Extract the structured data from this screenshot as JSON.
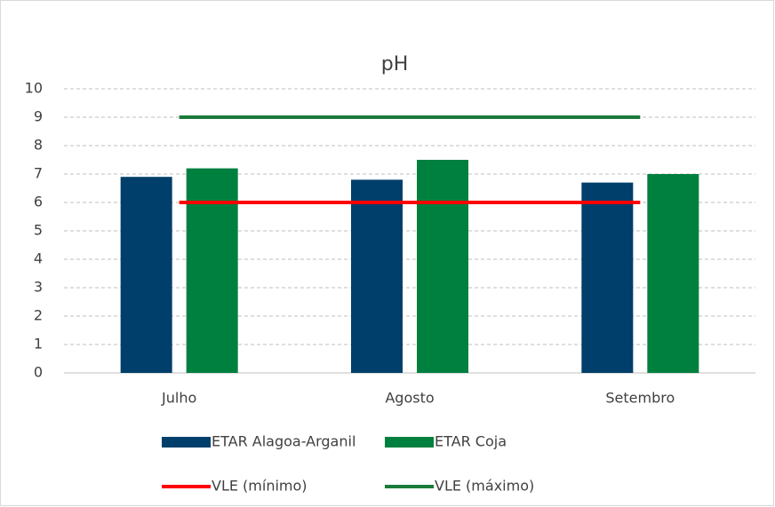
{
  "chart_data": {
    "type": "bar",
    "title": "pH",
    "categories": [
      "Julho",
      "Agosto",
      "Setembro"
    ],
    "series": [
      {
        "name": "ETAR Alagoa-Arganil",
        "type": "bar",
        "color": "#003f6b",
        "values": [
          6.9,
          6.8,
          6.7
        ]
      },
      {
        "name": "ETAR Coja",
        "type": "bar",
        "color": "#00803f",
        "values": [
          7.2,
          7.5,
          7.0
        ]
      },
      {
        "name": "VLE (mínimo)",
        "type": "line",
        "color": "#ff0000",
        "values": [
          6,
          6,
          6
        ]
      },
      {
        "name": "VLE (máximo)",
        "type": "line",
        "color": "#1a7a3a",
        "values": [
          9,
          9,
          9
        ]
      }
    ],
    "ylim": [
      0,
      10
    ],
    "yticks": [
      0,
      1,
      2,
      3,
      4,
      5,
      6,
      7,
      8,
      9,
      10
    ],
    "grid": true,
    "legend": "bottom"
  }
}
